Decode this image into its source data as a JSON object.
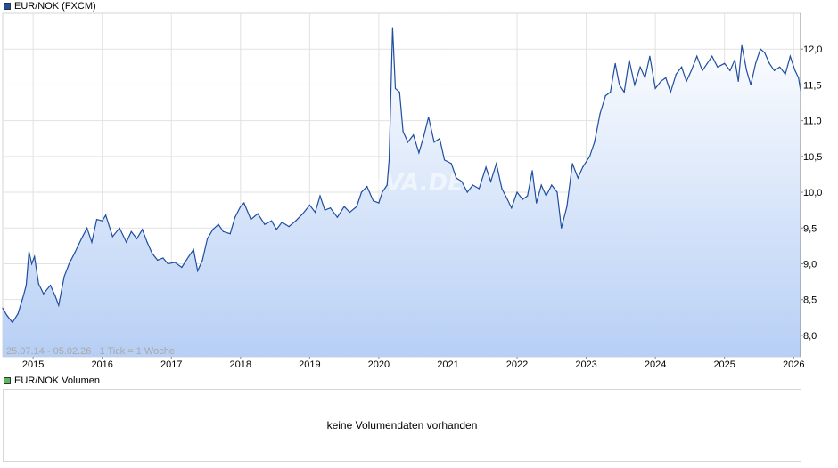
{
  "legend": {
    "price_label": "EUR/NOK (FXCM)",
    "price_color": "#1f4e9e",
    "volume_label": "EUR/NOK Volumen",
    "volume_color": "#5cb85c"
  },
  "watermark": "ARIVA.DE",
  "range_text": "25.07.14 - 05.02.26",
  "tick_text": "1 Tick = 1 Woche",
  "volume_message": "keine Volumendaten vorhanden",
  "chart_data": {
    "type": "area",
    "series": [
      {
        "name": "EUR/NOK (FXCM)",
        "points": [
          [
            2014.56,
            8.38
          ],
          [
            2014.62,
            8.28
          ],
          [
            2014.7,
            8.18
          ],
          [
            2014.78,
            8.3
          ],
          [
            2014.85,
            8.52
          ],
          [
            2014.9,
            8.7
          ],
          [
            2014.94,
            9.17
          ],
          [
            2014.98,
            9.0
          ],
          [
            2015.02,
            9.1
          ],
          [
            2015.08,
            8.72
          ],
          [
            2015.15,
            8.58
          ],
          [
            2015.25,
            8.7
          ],
          [
            2015.32,
            8.55
          ],
          [
            2015.37,
            8.42
          ],
          [
            2015.45,
            8.82
          ],
          [
            2015.52,
            9.0
          ],
          [
            2015.6,
            9.15
          ],
          [
            2015.7,
            9.35
          ],
          [
            2015.78,
            9.5
          ],
          [
            2015.85,
            9.3
          ],
          [
            2015.92,
            9.62
          ],
          [
            2016.0,
            9.6
          ],
          [
            2016.05,
            9.68
          ],
          [
            2016.15,
            9.38
          ],
          [
            2016.25,
            9.5
          ],
          [
            2016.35,
            9.3
          ],
          [
            2016.42,
            9.45
          ],
          [
            2016.5,
            9.35
          ],
          [
            2016.58,
            9.48
          ],
          [
            2016.65,
            9.3
          ],
          [
            2016.72,
            9.15
          ],
          [
            2016.8,
            9.05
          ],
          [
            2016.88,
            9.08
          ],
          [
            2016.95,
            9.0
          ],
          [
            2017.05,
            9.02
          ],
          [
            2017.15,
            8.95
          ],
          [
            2017.25,
            9.1
          ],
          [
            2017.32,
            9.2
          ],
          [
            2017.38,
            8.9
          ],
          [
            2017.45,
            9.05
          ],
          [
            2017.52,
            9.35
          ],
          [
            2017.6,
            9.48
          ],
          [
            2017.68,
            9.55
          ],
          [
            2017.75,
            9.45
          ],
          [
            2017.85,
            9.42
          ],
          [
            2017.92,
            9.65
          ],
          [
            2018.0,
            9.8
          ],
          [
            2018.05,
            9.85
          ],
          [
            2018.15,
            9.62
          ],
          [
            2018.25,
            9.7
          ],
          [
            2018.35,
            9.55
          ],
          [
            2018.45,
            9.6
          ],
          [
            2018.52,
            9.48
          ],
          [
            2018.6,
            9.58
          ],
          [
            2018.7,
            9.52
          ],
          [
            2018.8,
            9.6
          ],
          [
            2018.9,
            9.7
          ],
          [
            2019.0,
            9.82
          ],
          [
            2019.08,
            9.72
          ],
          [
            2019.15,
            9.95
          ],
          [
            2019.22,
            9.75
          ],
          [
            2019.3,
            9.78
          ],
          [
            2019.4,
            9.65
          ],
          [
            2019.5,
            9.8
          ],
          [
            2019.58,
            9.72
          ],
          [
            2019.68,
            9.8
          ],
          [
            2019.75,
            10.0
          ],
          [
            2019.83,
            10.08
          ],
          [
            2019.92,
            9.88
          ],
          [
            2020.0,
            9.85
          ],
          [
            2020.05,
            10.0
          ],
          [
            2020.12,
            10.1
          ],
          [
            2020.15,
            10.45
          ],
          [
            2020.2,
            12.3
          ],
          [
            2020.24,
            11.45
          ],
          [
            2020.3,
            11.4
          ],
          [
            2020.35,
            10.85
          ],
          [
            2020.42,
            10.7
          ],
          [
            2020.5,
            10.8
          ],
          [
            2020.58,
            10.55
          ],
          [
            2020.65,
            10.78
          ],
          [
            2020.72,
            11.05
          ],
          [
            2020.8,
            10.7
          ],
          [
            2020.88,
            10.75
          ],
          [
            2020.95,
            10.45
          ],
          [
            2021.05,
            10.4
          ],
          [
            2021.12,
            10.2
          ],
          [
            2021.2,
            10.15
          ],
          [
            2021.28,
            10.0
          ],
          [
            2021.36,
            10.1
          ],
          [
            2021.45,
            10.05
          ],
          [
            2021.55,
            10.35
          ],
          [
            2021.62,
            10.15
          ],
          [
            2021.7,
            10.4
          ],
          [
            2021.78,
            10.05
          ],
          [
            2021.85,
            9.92
          ],
          [
            2021.92,
            9.78
          ],
          [
            2022.0,
            10.0
          ],
          [
            2022.08,
            9.9
          ],
          [
            2022.15,
            9.95
          ],
          [
            2022.22,
            10.3
          ],
          [
            2022.28,
            9.85
          ],
          [
            2022.35,
            10.1
          ],
          [
            2022.42,
            9.95
          ],
          [
            2022.5,
            10.1
          ],
          [
            2022.58,
            10.0
          ],
          [
            2022.64,
            9.5
          ],
          [
            2022.72,
            9.8
          ],
          [
            2022.8,
            10.4
          ],
          [
            2022.88,
            10.2
          ],
          [
            2022.95,
            10.35
          ],
          [
            2023.05,
            10.5
          ],
          [
            2023.12,
            10.7
          ],
          [
            2023.2,
            11.1
          ],
          [
            2023.28,
            11.35
          ],
          [
            2023.35,
            11.4
          ],
          [
            2023.42,
            11.8
          ],
          [
            2023.48,
            11.5
          ],
          [
            2023.55,
            11.4
          ],
          [
            2023.62,
            11.85
          ],
          [
            2023.7,
            11.5
          ],
          [
            2023.78,
            11.75
          ],
          [
            2023.85,
            11.6
          ],
          [
            2023.92,
            11.9
          ],
          [
            2024.0,
            11.45
          ],
          [
            2024.08,
            11.55
          ],
          [
            2024.15,
            11.6
          ],
          [
            2024.22,
            11.4
          ],
          [
            2024.3,
            11.65
          ],
          [
            2024.38,
            11.75
          ],
          [
            2024.45,
            11.55
          ],
          [
            2024.52,
            11.7
          ],
          [
            2024.6,
            11.9
          ],
          [
            2024.68,
            11.7
          ],
          [
            2024.75,
            11.8
          ],
          [
            2024.82,
            11.9
          ],
          [
            2024.9,
            11.75
          ],
          [
            2025.0,
            11.8
          ],
          [
            2025.08,
            11.7
          ],
          [
            2025.15,
            11.85
          ],
          [
            2025.2,
            11.55
          ],
          [
            2025.25,
            12.05
          ],
          [
            2025.32,
            11.7
          ],
          [
            2025.38,
            11.5
          ],
          [
            2025.45,
            11.8
          ],
          [
            2025.52,
            12.0
          ],
          [
            2025.58,
            11.95
          ],
          [
            2025.65,
            11.8
          ],
          [
            2025.72,
            11.7
          ],
          [
            2025.8,
            11.75
          ],
          [
            2025.88,
            11.65
          ],
          [
            2025.95,
            11.9
          ],
          [
            2026.02,
            11.7
          ],
          [
            2026.07,
            11.6
          ],
          [
            2026.1,
            11.42
          ]
        ]
      }
    ],
    "x_ticks": [
      "2015",
      "2016",
      "2017",
      "2018",
      "2019",
      "2020",
      "2021",
      "2022",
      "2023",
      "2024",
      "2025",
      "2026"
    ],
    "y_ticks": [
      "8,0",
      "8,5",
      "9,0",
      "9,5",
      "10,0",
      "10,5",
      "11,0",
      "11,5",
      "12,0"
    ],
    "xlim": [
      2014.56,
      2026.1
    ],
    "ylim": [
      7.7,
      12.5
    ],
    "grid": true,
    "line_color": "#1f4e9e",
    "fill_top_color": "#ffffff",
    "fill_bottom_color": "#b7cff5",
    "grid_color": "#e2e2e2"
  }
}
